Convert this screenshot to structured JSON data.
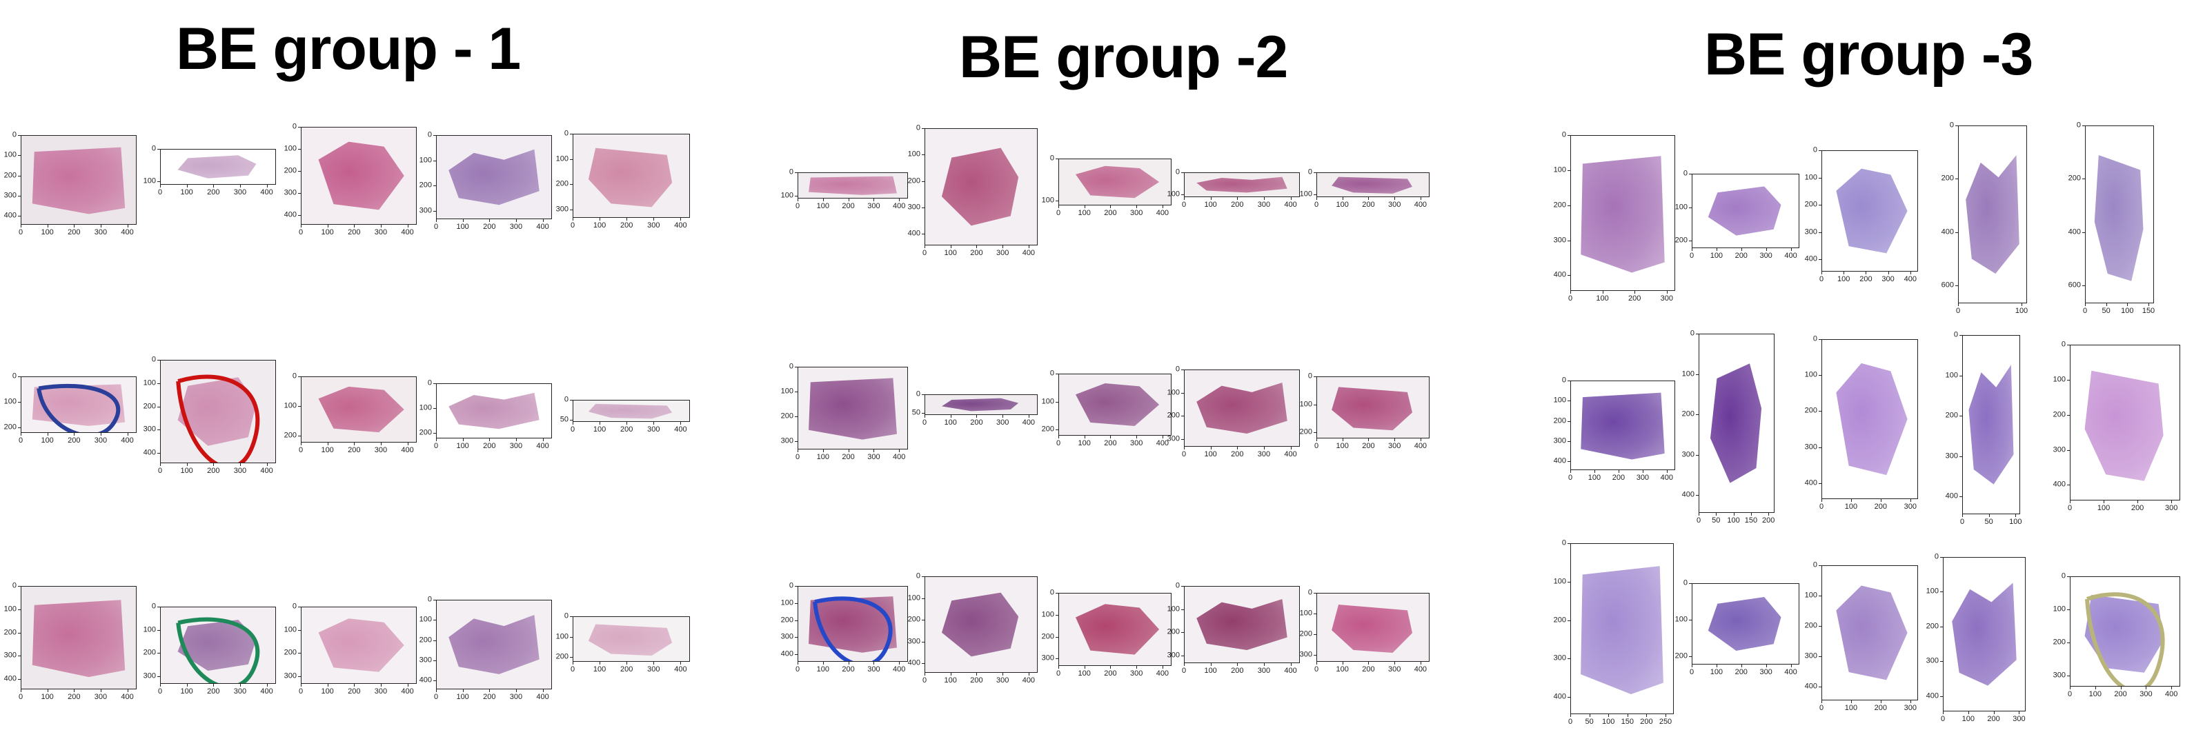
{
  "groups": [
    {
      "title": "BE group - 1"
    },
    {
      "title": "BE group -2"
    },
    {
      "title": "BE group -3"
    }
  ],
  "panels": [
    {
      "group": 0,
      "row": 0,
      "col": 0,
      "xt": [
        "0",
        "100",
        "200",
        "300",
        "400"
      ],
      "yt": [
        "0",
        "100",
        "200",
        "300",
        "400"
      ],
      "tissue": "#c8739f",
      "bg": "#ece6ea",
      "ink": ""
    },
    {
      "group": 0,
      "row": 0,
      "col": 1,
      "xt": [
        "0",
        "100",
        "200",
        "300",
        "400"
      ],
      "yt": [
        "0",
        "100"
      ],
      "tissue": "#c9a7c9",
      "bg": "#ffffff",
      "ink": ""
    },
    {
      "group": 0,
      "row": 0,
      "col": 2,
      "xt": [
        "0",
        "100",
        "200",
        "300",
        "400"
      ],
      "yt": [
        "0",
        "100",
        "200",
        "300",
        "400"
      ],
      "tissue": "#c45f8e",
      "bg": "#f4eef2",
      "ink": ""
    },
    {
      "group": 0,
      "row": 0,
      "col": 3,
      "xt": [
        "0",
        "100",
        "200",
        "300",
        "400"
      ],
      "yt": [
        "0",
        "100",
        "200",
        "300"
      ],
      "tissue": "#9b79b5",
      "bg": "#f1edf3",
      "ink": ""
    },
    {
      "group": 0,
      "row": 0,
      "col": 4,
      "xt": [
        "0",
        "100",
        "200",
        "300",
        "400"
      ],
      "yt": [
        "0",
        "100",
        "200",
        "300"
      ],
      "tissue": "#d08aa6",
      "bg": "#f3eef1",
      "ink": ""
    },
    {
      "group": 0,
      "row": 1,
      "col": 0,
      "xt": [
        "0",
        "100",
        "200",
        "300",
        "400"
      ],
      "yt": [
        "0",
        "100",
        "200"
      ],
      "tissue": "#d69ab8",
      "bg": "#f5f0f3",
      "ink": "#2a3f9a"
    },
    {
      "group": 0,
      "row": 1,
      "col": 1,
      "xt": [
        "0",
        "100",
        "200",
        "300",
        "400"
      ],
      "yt": [
        "0",
        "100",
        "200",
        "300",
        "400"
      ],
      "tissue": "#cf8fb2",
      "bg": "#f0ebef",
      "ink": "#cc1111"
    },
    {
      "group": 0,
      "row": 1,
      "col": 2,
      "xt": [
        "0",
        "100",
        "200",
        "300",
        "400"
      ],
      "yt": [
        "0",
        "100",
        "200"
      ],
      "tissue": "#c5668f",
      "bg": "#f2ecef",
      "ink": ""
    },
    {
      "group": 0,
      "row": 1,
      "col": 3,
      "xt": [
        "0",
        "100",
        "200",
        "300",
        "400"
      ],
      "yt": [
        "0",
        "100",
        "200"
      ],
      "tissue": "#c491b7",
      "bg": "#ffffff",
      "ink": ""
    },
    {
      "group": 0,
      "row": 1,
      "col": 4,
      "xt": [
        "0",
        "100",
        "200",
        "300",
        "400"
      ],
      "yt": [
        "0",
        "50"
      ],
      "tissue": "#cfa7c5",
      "bg": "#f4f1f3",
      "ink": ""
    },
    {
      "group": 0,
      "row": 2,
      "col": 0,
      "xt": [
        "0",
        "100",
        "200",
        "300",
        "400"
      ],
      "yt": [
        "0",
        "100",
        "200",
        "300",
        "400"
      ],
      "tissue": "#c5709b",
      "bg": "#eee9ec",
      "ink": ""
    },
    {
      "group": 0,
      "row": 2,
      "col": 1,
      "xt": [
        "0",
        "100",
        "200",
        "300",
        "400"
      ],
      "yt": [
        "0",
        "100",
        "200",
        "300"
      ],
      "tissue": "#9c73a8",
      "bg": "#f3eff2",
      "ink": "#1e8a5a"
    },
    {
      "group": 0,
      "row": 2,
      "col": 2,
      "xt": [
        "0",
        "100",
        "200",
        "300",
        "400"
      ],
      "yt": [
        "0",
        "100",
        "200",
        "300"
      ],
      "tissue": "#d79ab9",
      "bg": "#f5f0f3",
      "ink": ""
    },
    {
      "group": 0,
      "row": 2,
      "col": 3,
      "xt": [
        "0",
        "100",
        "200",
        "300",
        "400"
      ],
      "yt": [
        "0",
        "100",
        "200",
        "300",
        "400"
      ],
      "tissue": "#a278b0",
      "bg": "#f3eff2",
      "ink": ""
    },
    {
      "group": 0,
      "row": 2,
      "col": 4,
      "xt": [
        "0",
        "100",
        "200",
        "300",
        "400"
      ],
      "yt": [
        "0",
        "100",
        "200"
      ],
      "tissue": "#d8a9c2",
      "bg": "#f5f2f4",
      "ink": ""
    },
    {
      "group": 1,
      "row": 0,
      "col": 0,
      "xt": [
        "0",
        "100",
        "200",
        "300",
        "400"
      ],
      "yt": [
        "0",
        "100"
      ],
      "tissue": "#c77aa3",
      "bg": "#f0ecef",
      "ink": ""
    },
    {
      "group": 1,
      "row": 0,
      "col": 1,
      "xt": [
        "0",
        "100",
        "200",
        "300",
        "400"
      ],
      "yt": [
        "0",
        "100",
        "200",
        "300",
        "400"
      ],
      "tissue": "#b3557f",
      "bg": "#f4eff2",
      "ink": ""
    },
    {
      "group": 1,
      "row": 0,
      "col": 2,
      "xt": [
        "0",
        "100",
        "200",
        "300",
        "400"
      ],
      "yt": [
        "0",
        "100"
      ],
      "tissue": "#c26991",
      "bg": "#f2eef0",
      "ink": ""
    },
    {
      "group": 1,
      "row": 0,
      "col": 3,
      "xt": [
        "0",
        "100",
        "200",
        "300",
        "400"
      ],
      "yt": [
        "0",
        "100"
      ],
      "tissue": "#b35d88",
      "bg": "#f2eef0",
      "ink": ""
    },
    {
      "group": 1,
      "row": 0,
      "col": 4,
      "xt": [
        "0",
        "100",
        "200",
        "300",
        "400"
      ],
      "yt": [
        "0",
        "100"
      ],
      "tissue": "#a05c96",
      "bg": "#f2eef0",
      "ink": ""
    },
    {
      "group": 1,
      "row": 1,
      "col": 0,
      "xt": [
        "0",
        "100",
        "200",
        "300",
        "400"
      ],
      "yt": [
        "0",
        "100",
        "200",
        "300"
      ],
      "tissue": "#8e4f8d",
      "bg": "#f2eef1",
      "ink": ""
    },
    {
      "group": 1,
      "row": 1,
      "col": 1,
      "xt": [
        "0",
        "100",
        "200",
        "300",
        "400"
      ],
      "yt": [
        "0",
        "50"
      ],
      "tissue": "#7e4a8a",
      "bg": "#f0ecef",
      "ink": ""
    },
    {
      "group": 1,
      "row": 1,
      "col": 2,
      "xt": [
        "0",
        "100",
        "200",
        "300",
        "400"
      ],
      "yt": [
        "0",
        "100",
        "200"
      ],
      "tissue": "#94598f",
      "bg": "#f2eef1",
      "ink": ""
    },
    {
      "group": 1,
      "row": 1,
      "col": 3,
      "xt": [
        "0",
        "100",
        "200",
        "300",
        "400"
      ],
      "yt": [
        "0",
        "100",
        "200",
        "300"
      ],
      "tissue": "#a44c7a",
      "bg": "#f2eef1",
      "ink": ""
    },
    {
      "group": 1,
      "row": 1,
      "col": 4,
      "xt": [
        "0",
        "100",
        "200",
        "300",
        "400"
      ],
      "yt": [
        "0",
        "100",
        "200"
      ],
      "tissue": "#b04f7f",
      "bg": "#f2eef1",
      "ink": ""
    },
    {
      "group": 1,
      "row": 2,
      "col": 0,
      "xt": [
        "0",
        "100",
        "200",
        "300",
        "400"
      ],
      "yt": [
        "0",
        "100",
        "200",
        "300",
        "400"
      ],
      "tissue": "#a0497c",
      "bg": "#f0ecef",
      "ink": "#2548c9"
    },
    {
      "group": 1,
      "row": 2,
      "col": 1,
      "xt": [
        "0",
        "100",
        "200",
        "300",
        "400"
      ],
      "yt": [
        "0",
        "100",
        "200",
        "300",
        "400"
      ],
      "tissue": "#8c4f88",
      "bg": "#f3eff2",
      "ink": ""
    },
    {
      "group": 1,
      "row": 2,
      "col": 2,
      "xt": [
        "0",
        "100",
        "200",
        "300",
        "400"
      ],
      "yt": [
        "0",
        "100",
        "200",
        "300"
      ],
      "tissue": "#b1456d",
      "bg": "#f3eff2",
      "ink": ""
    },
    {
      "group": 1,
      "row": 2,
      "col": 3,
      "xt": [
        "0",
        "100",
        "200",
        "300",
        "400"
      ],
      "yt": [
        "0",
        "100",
        "200",
        "300"
      ],
      "tissue": "#933e6c",
      "bg": "#f3eff2",
      "ink": ""
    },
    {
      "group": 1,
      "row": 2,
      "col": 4,
      "xt": [
        "0",
        "100",
        "200",
        "300",
        "400"
      ],
      "yt": [
        "0",
        "100",
        "200",
        "300"
      ],
      "tissue": "#c2588a",
      "bg": "#f3eff2",
      "ink": ""
    },
    {
      "group": 2,
      "row": 0,
      "col": 0,
      "xt": [
        "0",
        "100",
        "200",
        "300"
      ],
      "yt": [
        "0",
        "100",
        "200",
        "300",
        "400"
      ],
      "tissue": "#a673b7",
      "bg": "#ffffff",
      "ink": ""
    },
    {
      "group": 2,
      "row": 0,
      "col": 1,
      "xt": [
        "0",
        "100",
        "200",
        "300",
        "400"
      ],
      "yt": [
        "0",
        "100",
        "200"
      ],
      "tissue": "#a37bc6",
      "bg": "#ffffff",
      "ink": ""
    },
    {
      "group": 2,
      "row": 0,
      "col": 2,
      "xt": [
        "0",
        "100",
        "200",
        "300",
        "400"
      ],
      "yt": [
        "0",
        "100",
        "200",
        "300",
        "400"
      ],
      "tissue": "#9a8bd0",
      "bg": "#ffffff",
      "ink": ""
    },
    {
      "group": 2,
      "row": 0,
      "col": 3,
      "xt": [
        "0",
        "100"
      ],
      "yt": [
        "0",
        "200",
        "400",
        "600"
      ],
      "tissue": "#9a7bbb",
      "bg": "#ffffff",
      "ink": ""
    },
    {
      "group": 2,
      "row": 0,
      "col": 4,
      "xt": [
        "0",
        "50",
        "100",
        "150"
      ],
      "yt": [
        "0",
        "200",
        "400",
        "600"
      ],
      "tissue": "#9b87c5",
      "bg": "#ffffff",
      "ink": ""
    },
    {
      "group": 2,
      "row": 1,
      "col": 0,
      "xt": [
        "0",
        "100",
        "200",
        "300",
        "400"
      ],
      "yt": [
        "0",
        "100",
        "200",
        "300",
        "400"
      ],
      "tissue": "#6f48a6",
      "bg": "#ffffff",
      "ink": ""
    },
    {
      "group": 2,
      "row": 1,
      "col": 1,
      "xt": [
        "0",
        "50",
        "100",
        "150",
        "200"
      ],
      "yt": [
        "0",
        "100",
        "200",
        "300",
        "400"
      ],
      "tissue": "#6b3a9a",
      "bg": "#ffffff",
      "ink": ""
    },
    {
      "group": 2,
      "row": 1,
      "col": 2,
      "xt": [
        "0",
        "100",
        "200",
        "300"
      ],
      "yt": [
        "0",
        "100",
        "200",
        "300",
        "400"
      ],
      "tissue": "#b28ad6",
      "bg": "#ffffff",
      "ink": ""
    },
    {
      "group": 2,
      "row": 1,
      "col": 3,
      "xt": [
        "0",
        "50",
        "100"
      ],
      "yt": [
        "0",
        "100",
        "200",
        "300",
        "400"
      ],
      "tissue": "#8c6fc2",
      "bg": "#ffffff",
      "ink": ""
    },
    {
      "group": 2,
      "row": 1,
      "col": 4,
      "xt": [
        "0",
        "100",
        "200",
        "300"
      ],
      "yt": [
        "0",
        "100",
        "200",
        "300",
        "400"
      ],
      "tissue": "#c895d6",
      "bg": "#ffffff",
      "ink": ""
    },
    {
      "group": 2,
      "row": 2,
      "col": 0,
      "xt": [
        "0",
        "50",
        "100",
        "150",
        "200",
        "250"
      ],
      "yt": [
        "0",
        "100",
        "200",
        "300",
        "400"
      ],
      "tissue": "#a38bd2",
      "bg": "#ffffff",
      "ink": ""
    },
    {
      "group": 2,
      "row": 2,
      "col": 1,
      "xt": [
        "0",
        "100",
        "200",
        "300",
        "400"
      ],
      "yt": [
        "0",
        "100",
        "200"
      ],
      "tissue": "#7b62b8",
      "bg": "#ffffff",
      "ink": ""
    },
    {
      "group": 2,
      "row": 2,
      "col": 2,
      "xt": [
        "0",
        "100",
        "200",
        "300"
      ],
      "yt": [
        "0",
        "100",
        "200",
        "300",
        "400"
      ],
      "tissue": "#a083c8",
      "bg": "#ffffff",
      "ink": ""
    },
    {
      "group": 2,
      "row": 2,
      "col": 3,
      "xt": [
        "0",
        "100",
        "200",
        "300"
      ],
      "yt": [
        "0",
        "100",
        "200",
        "300",
        "400"
      ],
      "tissue": "#8e71c2",
      "bg": "#ffffff",
      "ink": ""
    },
    {
      "group": 2,
      "row": 2,
      "col": 4,
      "xt": [
        "0",
        "100",
        "200",
        "300",
        "400"
      ],
      "yt": [
        "0",
        "100",
        "200",
        "300"
      ],
      "tissue": "#9a84d0",
      "bg": "#ffffff",
      "ink": "#b9b57a"
    }
  ]
}
